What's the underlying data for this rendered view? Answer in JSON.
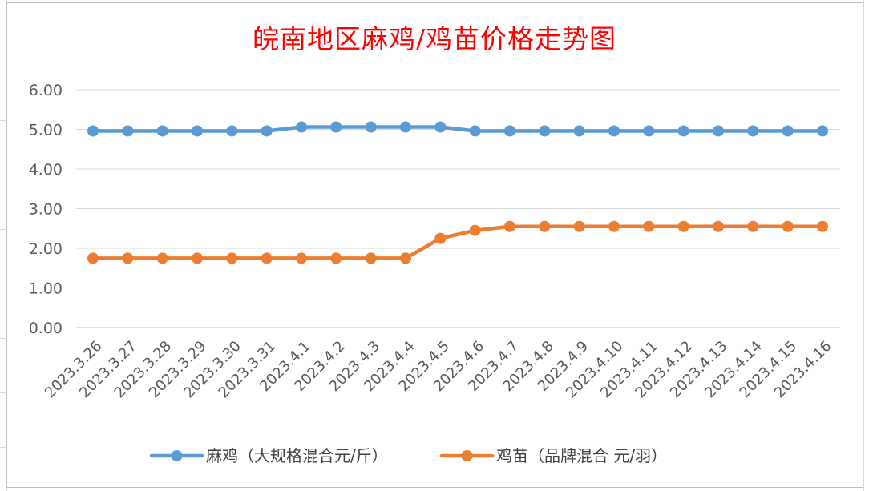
{
  "chart_data": {
    "type": "line",
    "title": "皖南地区麻鸡/鸡苗价格走势图",
    "xlabel": "",
    "ylabel": "",
    "ylim": [
      0,
      6
    ],
    "yticks": [
      "0.00",
      "1.00",
      "2.00",
      "3.00",
      "4.00",
      "5.00",
      "6.00"
    ],
    "grid": true,
    "legend_position": "bottom",
    "categories": [
      "2023.3.26",
      "2023.3.27",
      "2023.3.28",
      "2023.3.29",
      "2023.3.30",
      "2023.3.31",
      "2023.4.1",
      "2023.4.2",
      "2023.4.3",
      "2023.4.4",
      "2023.4.5",
      "2023.4.6",
      "2023.4.7",
      "2023.4.8",
      "2023.4.9",
      "2023.4.10",
      "2023.4.11",
      "2023.4.12",
      "2023.4.13",
      "2023.4.14",
      "2023.4.15",
      "2023.4.16"
    ],
    "series": [
      {
        "name": "麻鸡（大规格混合元/斤）",
        "color": "#5b9bd5",
        "values": [
          4.96,
          4.96,
          4.96,
          4.96,
          4.96,
          4.96,
          5.06,
          5.06,
          5.06,
          5.06,
          5.06,
          4.96,
          4.96,
          4.96,
          4.96,
          4.96,
          4.96,
          4.96,
          4.96,
          4.96,
          4.96,
          4.96
        ]
      },
      {
        "name": "鸡苗（品牌混合 元/羽）",
        "color": "#ed7d31",
        "values": [
          1.75,
          1.75,
          1.75,
          1.75,
          1.75,
          1.75,
          1.75,
          1.75,
          1.75,
          1.75,
          2.25,
          2.45,
          2.55,
          2.55,
          2.55,
          2.55,
          2.55,
          2.55,
          2.55,
          2.55,
          2.55,
          2.55
        ]
      }
    ]
  }
}
